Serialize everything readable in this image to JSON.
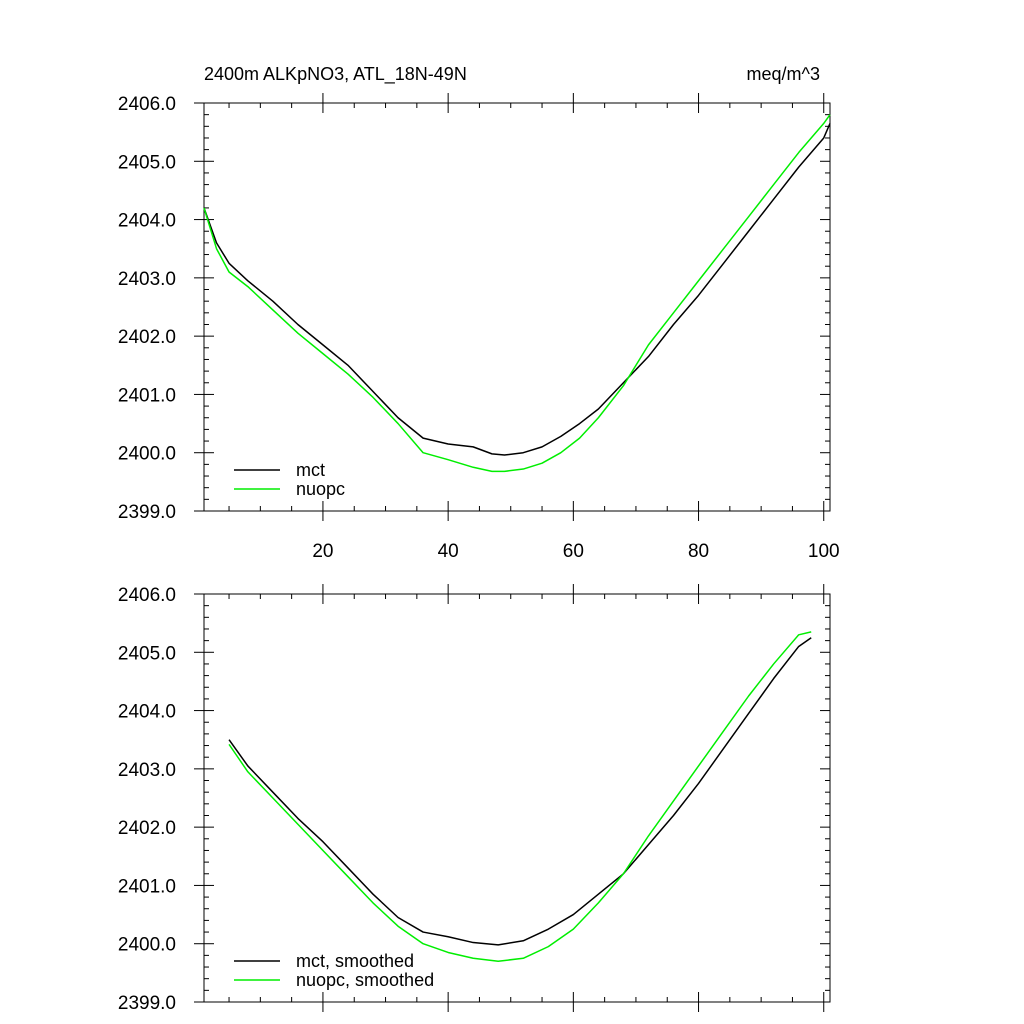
{
  "chart_data": [
    {
      "type": "line",
      "title": "2400m ALKpNO3, ATL_18N-49N",
      "units": "meq/m^3",
      "xlabel": "",
      "ylabel": "",
      "xlim": [
        1,
        101
      ],
      "ylim": [
        2399.0,
        2406.0
      ],
      "x_ticks": [
        20,
        40,
        60,
        80,
        100
      ],
      "x_tick_labels": [
        "20",
        "40",
        "60",
        "80",
        "100"
      ],
      "y_ticks": [
        2399.0,
        2400.0,
        2401.0,
        2402.0,
        2403.0,
        2404.0,
        2405.0,
        2406.0
      ],
      "y_tick_labels": [
        "2399.0",
        "2400.0",
        "2401.0",
        "2402.0",
        "2403.0",
        "2404.0",
        "2405.0",
        "2406.0"
      ],
      "grid": false,
      "legend": "bottom-left",
      "series": [
        {
          "name": "mct",
          "color": "#000000",
          "points": [
            [
              1,
              2404.2
            ],
            [
              3,
              2403.6
            ],
            [
              5,
              2403.25
            ],
            [
              8,
              2402.95
            ],
            [
              12,
              2402.6
            ],
            [
              16,
              2402.2
            ],
            [
              20,
              2401.85
            ],
            [
              24,
              2401.5
            ],
            [
              28,
              2401.05
            ],
            [
              32,
              2400.6
            ],
            [
              36,
              2400.25
            ],
            [
              40,
              2400.15
            ],
            [
              44,
              2400.1
            ],
            [
              47,
              2399.98
            ],
            [
              49,
              2399.96
            ],
            [
              52,
              2400.0
            ],
            [
              55,
              2400.1
            ],
            [
              58,
              2400.28
            ],
            [
              61,
              2400.5
            ],
            [
              64,
              2400.75
            ],
            [
              68,
              2401.2
            ],
            [
              72,
              2401.65
            ],
            [
              76,
              2402.2
            ],
            [
              80,
              2402.7
            ],
            [
              84,
              2403.25
            ],
            [
              88,
              2403.8
            ],
            [
              92,
              2404.35
            ],
            [
              96,
              2404.9
            ],
            [
              100,
              2405.4
            ],
            [
              101,
              2405.65
            ]
          ]
        },
        {
          "name": "nuopc",
          "color": "#00ee00",
          "points": [
            [
              1,
              2404.2
            ],
            [
              3,
              2403.5
            ],
            [
              5,
              2403.1
            ],
            [
              8,
              2402.85
            ],
            [
              12,
              2402.45
            ],
            [
              16,
              2402.05
            ],
            [
              20,
              2401.7
            ],
            [
              24,
              2401.35
            ],
            [
              28,
              2400.95
            ],
            [
              32,
              2400.5
            ],
            [
              36,
              2400.0
            ],
            [
              40,
              2399.88
            ],
            [
              44,
              2399.75
            ],
            [
              47,
              2399.68
            ],
            [
              49,
              2399.68
            ],
            [
              52,
              2399.72
            ],
            [
              55,
              2399.82
            ],
            [
              58,
              2400.0
            ],
            [
              61,
              2400.25
            ],
            [
              64,
              2400.6
            ],
            [
              68,
              2401.15
            ],
            [
              72,
              2401.85
            ],
            [
              76,
              2402.4
            ],
            [
              80,
              2402.95
            ],
            [
              84,
              2403.5
            ],
            [
              88,
              2404.05
            ],
            [
              92,
              2404.6
            ],
            [
              96,
              2405.15
            ],
            [
              100,
              2405.65
            ],
            [
              101,
              2405.8
            ]
          ]
        }
      ]
    },
    {
      "type": "line",
      "title": "",
      "xlabel": "",
      "ylabel": "",
      "xlim": [
        1,
        101
      ],
      "ylim": [
        2399.0,
        2406.0
      ],
      "x_ticks": [
        20,
        40,
        60,
        80,
        100
      ],
      "x_tick_labels": [],
      "y_ticks": [
        2399.0,
        2400.0,
        2401.0,
        2402.0,
        2403.0,
        2404.0,
        2405.0,
        2406.0
      ],
      "y_tick_labels": [
        "2399.0",
        "2400.0",
        "2401.0",
        "2402.0",
        "2403.0",
        "2404.0",
        "2405.0",
        "2406.0"
      ],
      "grid": false,
      "legend": "bottom-left",
      "series": [
        {
          "name": "mct, smoothed",
          "color": "#000000",
          "points": [
            [
              5,
              2403.5
            ],
            [
              8,
              2403.05
            ],
            [
              12,
              2402.6
            ],
            [
              16,
              2402.15
            ],
            [
              20,
              2401.75
            ],
            [
              24,
              2401.3
            ],
            [
              28,
              2400.85
            ],
            [
              32,
              2400.45
            ],
            [
              36,
              2400.2
            ],
            [
              40,
              2400.12
            ],
            [
              44,
              2400.02
            ],
            [
              48,
              2399.98
            ],
            [
              52,
              2400.05
            ],
            [
              56,
              2400.25
            ],
            [
              60,
              2400.5
            ],
            [
              64,
              2400.85
            ],
            [
              68,
              2401.2
            ],
            [
              72,
              2401.7
            ],
            [
              76,
              2402.2
            ],
            [
              80,
              2402.75
            ],
            [
              84,
              2403.35
            ],
            [
              88,
              2403.95
            ],
            [
              92,
              2404.55
            ],
            [
              96,
              2405.1
            ],
            [
              98,
              2405.25
            ]
          ]
        },
        {
          "name": "nuopc, smoothed",
          "color": "#00ee00",
          "points": [
            [
              5,
              2403.42
            ],
            [
              8,
              2402.95
            ],
            [
              12,
              2402.5
            ],
            [
              16,
              2402.05
            ],
            [
              20,
              2401.6
            ],
            [
              24,
              2401.15
            ],
            [
              28,
              2400.7
            ],
            [
              32,
              2400.3
            ],
            [
              36,
              2400.0
            ],
            [
              40,
              2399.85
            ],
            [
              44,
              2399.75
            ],
            [
              48,
              2399.7
            ],
            [
              52,
              2399.75
            ],
            [
              56,
              2399.95
            ],
            [
              60,
              2400.25
            ],
            [
              64,
              2400.7
            ],
            [
              68,
              2401.2
            ],
            [
              72,
              2401.85
            ],
            [
              76,
              2402.45
            ],
            [
              80,
              2403.05
            ],
            [
              84,
              2403.65
            ],
            [
              88,
              2404.25
            ],
            [
              92,
              2404.8
            ],
            [
              96,
              2405.3
            ],
            [
              98,
              2405.35
            ]
          ]
        }
      ]
    }
  ]
}
